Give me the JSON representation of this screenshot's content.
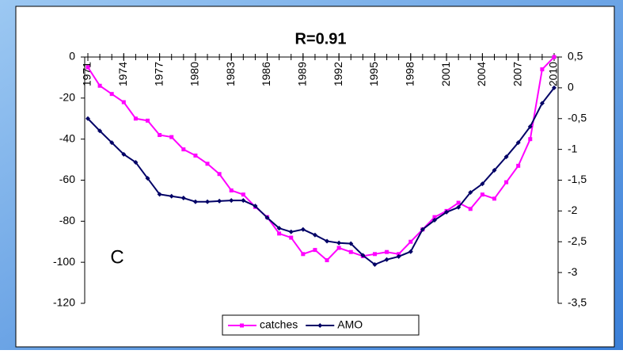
{
  "chart_data": {
    "type": "line",
    "title": "R=0.91",
    "annotations": [
      "C"
    ],
    "x": [
      1971,
      1972,
      1973,
      1974,
      1975,
      1976,
      1977,
      1978,
      1979,
      1980,
      1981,
      1982,
      1983,
      1984,
      1985,
      1986,
      1987,
      1988,
      1989,
      1990,
      1991,
      1992,
      1993,
      1994,
      1995,
      1996,
      1997,
      1998,
      1999,
      2000,
      2001,
      2002,
      2003,
      2004,
      2005,
      2006,
      2007,
      2008,
      2009,
      2010
    ],
    "xlim": [
      1971,
      2010
    ],
    "xticks": [
      1971,
      1974,
      1977,
      1980,
      1983,
      1986,
      1989,
      1992,
      1995,
      1998,
      2001,
      2004,
      2007,
      2010
    ],
    "ylim": [
      -120,
      0
    ],
    "yticks": [
      0,
      -20,
      -40,
      -60,
      -80,
      -100,
      -120
    ],
    "y2lim": [
      -3.5,
      0.5
    ],
    "y2ticks": [
      {
        "value": 0.5,
        "label": "0,5"
      },
      0,
      {
        "value": -0.5,
        "label": "-0,5"
      },
      -1,
      {
        "value": -1.5,
        "label": "-1,5"
      },
      -2,
      {
        "value": -2.5,
        "label": "-2,5"
      },
      -3,
      {
        "value": -3.5,
        "label": "-3,5"
      }
    ],
    "legend": "bottom",
    "series": [
      {
        "name": "catches",
        "color": "#ff00ff",
        "values": [
          -5,
          -14,
          -18,
          -22,
          -30,
          -31,
          -38,
          -39,
          -45,
          -48,
          -52,
          -57,
          -65,
          -67,
          -73,
          -78,
          -86,
          -88,
          -96,
          -94,
          -99,
          -93,
          -95,
          -97,
          -96,
          -95,
          -96,
          -90,
          -84,
          -78,
          -75,
          -71,
          -74,
          -67,
          -69,
          -61,
          -53,
          -40,
          -6,
          0
        ]
      },
      {
        "name": "AMO",
        "color": "#000066",
        "axis": "y2",
        "values": [
          -0.5,
          -0.7,
          -0.89,
          -1.08,
          -1.21,
          -1.47,
          -1.73,
          -1.76,
          -1.79,
          -1.85,
          -1.85,
          -1.84,
          -1.83,
          -1.83,
          -1.92,
          -2.11,
          -2.28,
          -2.34,
          -2.3,
          -2.39,
          -2.49,
          -2.52,
          -2.53,
          -2.72,
          -2.87,
          -2.79,
          -2.74,
          -2.66,
          -2.3,
          -2.15,
          -2.02,
          -1.94,
          -1.7,
          -1.56,
          -1.34,
          -1.12,
          -0.89,
          -0.63,
          -0.25,
          0.0
        ]
      }
    ]
  }
}
